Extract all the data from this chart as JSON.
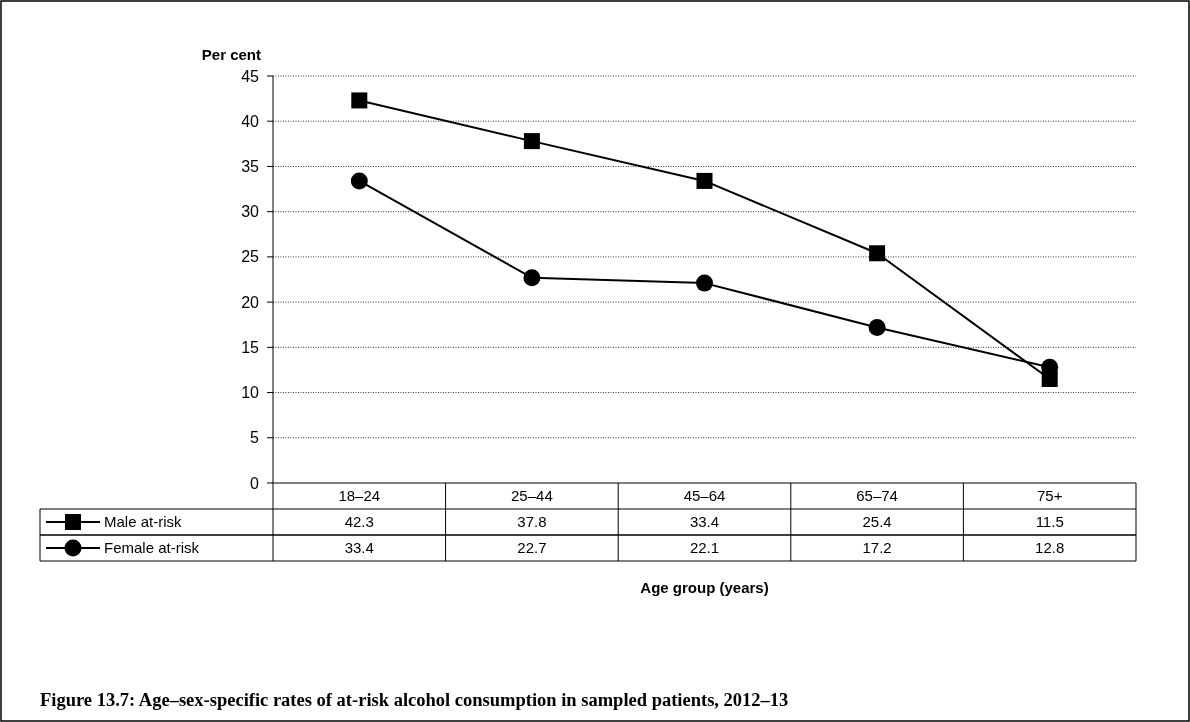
{
  "chart_data": {
    "type": "line",
    "title": "Figure 13.7: Age–sex-specific rates of at-risk alcohol consumption in sampled patients, 2012–13",
    "ylabel": "Per cent",
    "xlabel": "Age group (years)",
    "categories": [
      "18–24",
      "25–44",
      "45–64",
      "65–74",
      "75+"
    ],
    "series": [
      {
        "name": "Male at-risk",
        "color": "#000000",
        "marker": "square",
        "values": [
          42.3,
          37.8,
          33.4,
          25.4,
          11.5
        ]
      },
      {
        "name": "Female at-risk",
        "color": "#000000",
        "marker": "circle",
        "values": [
          33.4,
          22.7,
          22.1,
          17.2,
          12.8
        ]
      }
    ],
    "ylim": [
      0,
      45
    ],
    "yticks": [
      0,
      5,
      10,
      15,
      20,
      25,
      30,
      35,
      40,
      45
    ],
    "grid": "y",
    "legend": "bottom left",
    "data_labels": true
  }
}
